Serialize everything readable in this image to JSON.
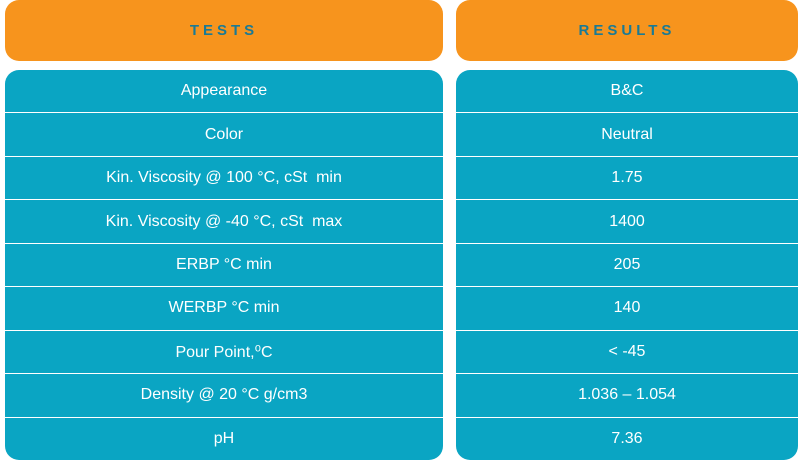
{
  "headers": {
    "tests": "TESTS",
    "results": "RESULTS"
  },
  "rows": [
    {
      "test": "Appearance",
      "result": "B&C"
    },
    {
      "test": "Color",
      "result": "Neutral"
    },
    {
      "test": "Kin. Viscosity @ 100 °C, cSt  min",
      "result": "1.75"
    },
    {
      "test": "Kin. Viscosity @ -40 °C, cSt  max",
      "result": "1400"
    },
    {
      "test": "ERBP °C min",
      "result": "205"
    },
    {
      "test": "WERBP °C min",
      "result": "140"
    },
    {
      "test": "Pour Point,⁰C",
      "result": "< -45"
    },
    {
      "test": "Density @ 20 °C g/cm3",
      "result": "1.036 – 1.054"
    },
    {
      "test": "pH",
      "result": "7.36"
    }
  ],
  "colors": {
    "header_bg": "#F7941D",
    "header_text": "#1A7A95",
    "row_bg": "#0AA5C3",
    "row_text": "#FFFFFF"
  }
}
